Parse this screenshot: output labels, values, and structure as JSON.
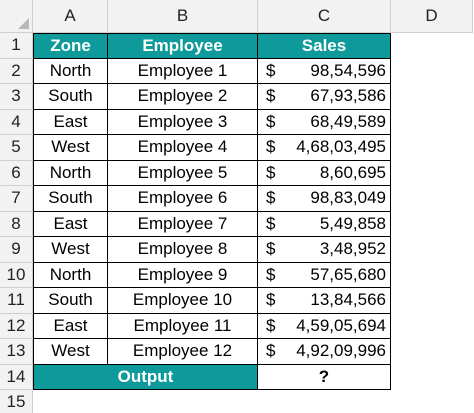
{
  "columns": [
    "A",
    "B",
    "C",
    "D"
  ],
  "row_numbers": [
    "1",
    "2",
    "3",
    "4",
    "5",
    "6",
    "7",
    "8",
    "9",
    "10",
    "11",
    "12",
    "13",
    "14",
    "15"
  ],
  "header": {
    "zone": "Zone",
    "employee": "Employee",
    "sales": "Sales"
  },
  "currency": "$",
  "rows": [
    {
      "zone": "North",
      "employee": "Employee 1",
      "sales": "98,54,596"
    },
    {
      "zone": "South",
      "employee": "Employee 2",
      "sales": "67,93,586"
    },
    {
      "zone": "East",
      "employee": "Employee 3",
      "sales": "68,49,589"
    },
    {
      "zone": "West",
      "employee": "Employee 4",
      "sales": "4,68,03,495"
    },
    {
      "zone": "North",
      "employee": "Employee 5",
      "sales": "8,60,695"
    },
    {
      "zone": "South",
      "employee": "Employee 6",
      "sales": "98,83,049"
    },
    {
      "zone": "East",
      "employee": "Employee 7",
      "sales": "5,49,858"
    },
    {
      "zone": "West",
      "employee": "Employee 8",
      "sales": "3,48,952"
    },
    {
      "zone": "North",
      "employee": "Employee 9",
      "sales": "57,65,680"
    },
    {
      "zone": "South",
      "employee": "Employee 10",
      "sales": "13,84,566"
    },
    {
      "zone": "East",
      "employee": "Employee 11",
      "sales": "4,59,05,694"
    },
    {
      "zone": "West",
      "employee": "Employee 12",
      "sales": "4,92,09,996"
    }
  ],
  "output": {
    "label": "Output",
    "value": "?"
  },
  "colors": {
    "header_fill": "#0e9a9a",
    "header_text": "#ffffff",
    "gridline": "#d9d9d9",
    "chrome": "#f2f2f2"
  }
}
